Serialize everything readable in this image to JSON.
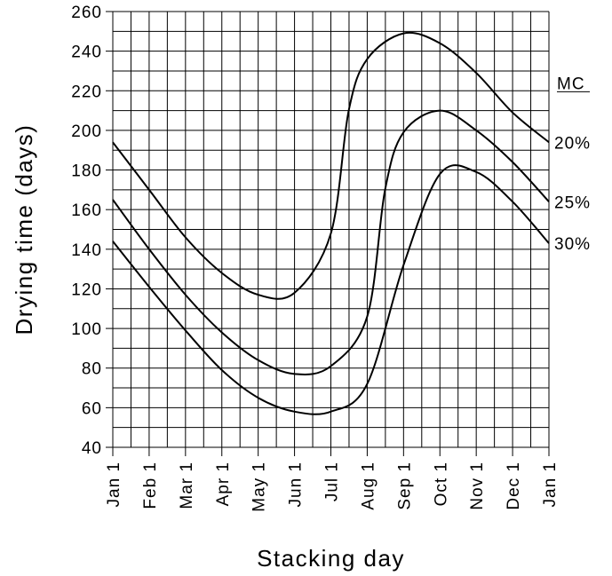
{
  "chart_data": {
    "type": "line",
    "title": "",
    "xlabel": "Stacking day",
    "ylabel": "Drying time (days)",
    "ylim": [
      40,
      260
    ],
    "y_ticks": [
      40,
      60,
      80,
      100,
      120,
      140,
      160,
      180,
      200,
      220,
      240,
      260
    ],
    "grid": true,
    "categories": [
      "Jan 1",
      "Feb 1",
      "Mar 1",
      "Apr 1",
      "May 1",
      "Jun 1",
      "Jul 1",
      "Aug 1",
      "Sep 1",
      "Oct 1",
      "Nov 1",
      "Dec 1",
      "Jan 1"
    ],
    "legend_title": "MC",
    "series": [
      {
        "name": "20%",
        "points": [
          [
            "Jan 1",
            194
          ],
          [
            "Feb 1",
            170
          ],
          [
            "Mar 1",
            146
          ],
          [
            "Apr 1",
            128
          ],
          [
            "May 1",
            117
          ],
          [
            "Jun 1",
            118
          ],
          [
            "Jul 1",
            148
          ],
          [
            "Jul 16",
            210
          ],
          [
            "Aug 1",
            236
          ],
          [
            "Sep 1",
            249
          ],
          [
            "Oct 1",
            244
          ],
          [
            "Nov 1",
            229
          ],
          [
            "Dec 1",
            209
          ],
          [
            "Jan 1",
            194
          ]
        ]
      },
      {
        "name": "25%",
        "points": [
          [
            "Jan 1",
            165
          ],
          [
            "Feb 1",
            140
          ],
          [
            "Mar 1",
            117
          ],
          [
            "Apr 1",
            98
          ],
          [
            "May 1",
            84
          ],
          [
            "Jun 1",
            77
          ],
          [
            "Jul 1",
            81
          ],
          [
            "Aug 1",
            106
          ],
          [
            "Aug 16",
            170
          ],
          [
            "Sep 1",
            199
          ],
          [
            "Oct 1",
            210
          ],
          [
            "Nov 1",
            200
          ],
          [
            "Dec 1",
            184
          ],
          [
            "Jan 1",
            164
          ]
        ]
      },
      {
        "name": "30%",
        "points": [
          [
            "Jan 1",
            144
          ],
          [
            "Feb 1",
            121
          ],
          [
            "Mar 1",
            99
          ],
          [
            "Apr 1",
            79
          ],
          [
            "May 1",
            65
          ],
          [
            "Jun 1",
            58
          ],
          [
            "Jul 1",
            58
          ],
          [
            "Aug 1",
            72
          ],
          [
            "Sep 1",
            132
          ],
          [
            "Oct 1",
            178
          ],
          [
            "Nov 1",
            179
          ],
          [
            "Dec 1",
            164
          ],
          [
            "Jan 1",
            143
          ]
        ]
      }
    ]
  }
}
